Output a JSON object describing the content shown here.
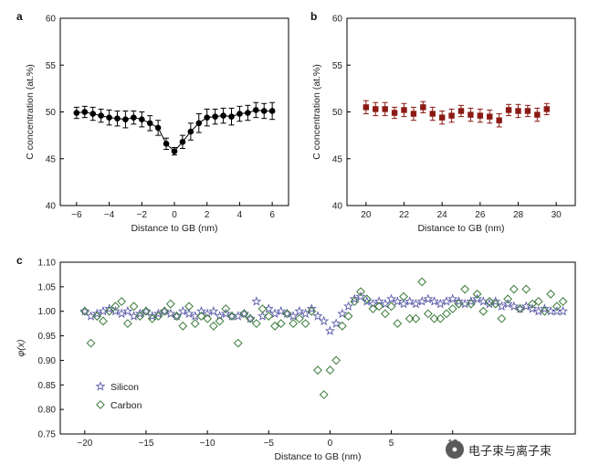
{
  "chart_data": [
    {
      "panel": "a",
      "type": "scatter",
      "xlabel": "Distance to GB (nm)",
      "ylabel": "C concentration (at.%)",
      "xlim": [
        -7,
        7
      ],
      "ylim": [
        40,
        60
      ],
      "xticks": [
        -6,
        -4,
        -2,
        0,
        2,
        4,
        6
      ],
      "yticks": [
        40,
        45,
        50,
        55,
        60
      ],
      "color": "#000000",
      "marker": "circle",
      "connected": true,
      "series": [
        {
          "x": [
            -6,
            -5.5,
            -5,
            -4.5,
            -4,
            -3.5,
            -3,
            -2.5,
            -2,
            -1.5,
            -1,
            -0.5,
            0,
            0.5,
            1,
            1.5,
            2,
            2.5,
            3,
            3.5,
            4,
            4.5,
            5,
            5.5,
            6
          ],
          "y": [
            49.9,
            50.0,
            49.8,
            49.6,
            49.4,
            49.3,
            49.2,
            49.4,
            49.2,
            48.8,
            48.3,
            46.6,
            45.8,
            46.8,
            47.9,
            48.8,
            49.4,
            49.5,
            49.6,
            49.5,
            49.8,
            49.9,
            50.2,
            50.1,
            50.1
          ],
          "err": [
            0.6,
            0.6,
            0.7,
            0.7,
            0.8,
            0.8,
            0.9,
            0.7,
            0.8,
            0.8,
            0.8,
            0.6,
            0.4,
            0.7,
            0.9,
            1.0,
            0.9,
            0.8,
            0.8,
            0.9,
            0.8,
            0.8,
            0.8,
            0.8,
            0.9
          ]
        }
      ]
    },
    {
      "panel": "b",
      "type": "scatter",
      "xlabel": "Distance to GB (nm)",
      "ylabel": "C concentration (at.%)",
      "xlim": [
        19,
        31
      ],
      "ylim": [
        40,
        60
      ],
      "xticks": [
        20,
        22,
        24,
        26,
        28,
        30
      ],
      "yticks": [
        40,
        45,
        50,
        55,
        60
      ],
      "color": "#8b1a14",
      "marker": "square",
      "connected": false,
      "series": [
        {
          "x": [
            20,
            20.5,
            21,
            21.5,
            22,
            22.5,
            23,
            23.5,
            24,
            24.5,
            25,
            25.5,
            26,
            26.5,
            27,
            27.5,
            28,
            28.5,
            29,
            29.5
          ],
          "y": [
            50.5,
            50.3,
            50.3,
            49.9,
            50.2,
            49.8,
            50.5,
            49.8,
            49.4,
            49.6,
            50.1,
            49.7,
            49.6,
            49.5,
            49.1,
            50.2,
            50.1,
            50.1,
            49.7,
            50.3
          ],
          "err": [
            0.7,
            0.7,
            0.7,
            0.6,
            0.7,
            0.7,
            0.6,
            0.7,
            0.7,
            0.7,
            0.6,
            0.7,
            0.7,
            0.7,
            0.7,
            0.6,
            0.7,
            0.6,
            0.7,
            0.6
          ]
        }
      ]
    },
    {
      "panel": "c",
      "type": "scatter",
      "xlabel": "Distance to GB (nm)",
      "ylabel": "φ(x)",
      "xlim": [
        -22,
        20
      ],
      "ylim": [
        0.75,
        1.1
      ],
      "xticks": [
        -20,
        -15,
        -10,
        -5,
        0,
        5,
        10
      ],
      "yticks": [
        0.75,
        0.8,
        0.85,
        0.9,
        0.95,
        1.0,
        1.05,
        1.1
      ],
      "legend_position": "bottom-left",
      "series": [
        {
          "name": "Silicon",
          "marker": "star",
          "color": "#5a5aa8",
          "x": [
            -20,
            -19.5,
            -19,
            -18.5,
            -18,
            -17.5,
            -17,
            -16.5,
            -16,
            -15.5,
            -15,
            -14.5,
            -14,
            -13.5,
            -13,
            -12.5,
            -12,
            -11.5,
            -11,
            -10.5,
            -10,
            -9.5,
            -9,
            -8.5,
            -8,
            -7.5,
            -7,
            -6.5,
            -6,
            -5.5,
            -5,
            -4.5,
            -4,
            -3.5,
            -3,
            -2.5,
            -2,
            -1.5,
            -1,
            -0.5,
            0,
            0.5,
            1,
            1.5,
            2,
            2.5,
            3,
            3.5,
            4,
            4.5,
            5,
            5.5,
            6,
            6.5,
            7,
            7.5,
            8,
            8.5,
            9,
            9.5,
            10,
            10.5,
            11,
            11.5,
            12,
            12.5,
            13,
            13.5,
            14,
            14.5,
            15,
            15.5,
            16,
            16.5,
            17,
            17.5,
            18,
            18.5,
            19
          ],
          "y": [
            1.0,
            0.99,
            0.995,
            1.0,
            1.005,
            1.0,
            0.995,
            1.0,
            0.99,
            0.995,
            1.0,
            0.99,
            0.995,
            1.0,
            0.995,
            0.99,
            1.0,
            0.995,
            0.99,
            1.0,
            0.995,
            1.0,
            0.99,
            0.995,
            0.99,
            0.99,
            0.995,
            0.985,
            1.02,
            0.99,
            1.005,
            0.995,
            1.0,
            0.995,
            0.99,
            1.0,
            0.995,
            1.005,
            0.99,
            0.98,
            0.96,
            0.975,
            0.995,
            1.01,
            1.025,
            1.03,
            1.02,
            1.015,
            1.02,
            1.015,
            1.025,
            1.02,
            1.015,
            1.02,
            1.015,
            1.02,
            1.025,
            1.02,
            1.015,
            1.02,
            1.025,
            1.02,
            1.015,
            1.02,
            1.025,
            1.02,
            1.015,
            1.02,
            1.01,
            1.015,
            1.01,
            1.005,
            1.01,
            1.005,
            1.0,
            1.005,
            1.0,
            1.0,
            1.0
          ]
        },
        {
          "name": "Carbon",
          "marker": "diamond",
          "color": "#3a7a3a",
          "x": [
            -20,
            -19.5,
            -19,
            -18.5,
            -18,
            -17.5,
            -17,
            -16.5,
            -16,
            -15.5,
            -15,
            -14.5,
            -14,
            -13.5,
            -13,
            -12.5,
            -12,
            -11.5,
            -11,
            -10.5,
            -10,
            -9.5,
            -9,
            -8.5,
            -8,
            -7.5,
            -7,
            -6.5,
            -6,
            -5.5,
            -5,
            -4.5,
            -4,
            -3.5,
            -3,
            -2.5,
            -2,
            -1.5,
            -1,
            -0.5,
            0,
            0.5,
            1,
            1.5,
            2,
            2.5,
            3,
            3.5,
            4,
            4.5,
            5,
            5.5,
            6,
            6.5,
            7,
            7.5,
            8,
            8.5,
            9,
            9.5,
            10,
            10.5,
            11,
            11.5,
            12,
            12.5,
            13,
            13.5,
            14,
            14.5,
            15,
            15.5,
            16,
            16.5,
            17,
            17.5,
            18,
            18.5,
            19
          ],
          "y": [
            1.0,
            0.935,
            0.99,
            0.98,
            1.0,
            1.01,
            1.02,
            0.975,
            1.01,
            0.99,
            1.0,
            0.985,
            0.99,
            1.0,
            1.015,
            0.99,
            0.97,
            1.01,
            0.975,
            0.99,
            0.985,
            0.97,
            0.98,
            1.005,
            0.99,
            0.935,
            0.995,
            0.985,
            0.975,
            1.005,
            0.99,
            0.97,
            0.975,
            0.995,
            0.975,
            0.985,
            0.975,
            1.0,
            0.88,
            0.83,
            0.88,
            0.9,
            0.97,
            0.99,
            1.02,
            1.04,
            1.025,
            1.005,
            1.01,
            0.995,
            1.01,
            0.975,
            1.03,
            0.985,
            0.985,
            1.06,
            0.995,
            0.985,
            0.985,
            0.995,
            1.005,
            1.015,
            1.045,
            1.015,
            1.035,
            1.0,
            1.02,
            1.015,
            0.985,
            1.025,
            1.045,
            1.005,
            1.045,
            1.015,
            1.02,
            1.0,
            1.035,
            1.01,
            1.02
          ]
        }
      ]
    }
  ],
  "watermark": {
    "icon": "wechat-icon",
    "text": "电子束与离子束"
  }
}
